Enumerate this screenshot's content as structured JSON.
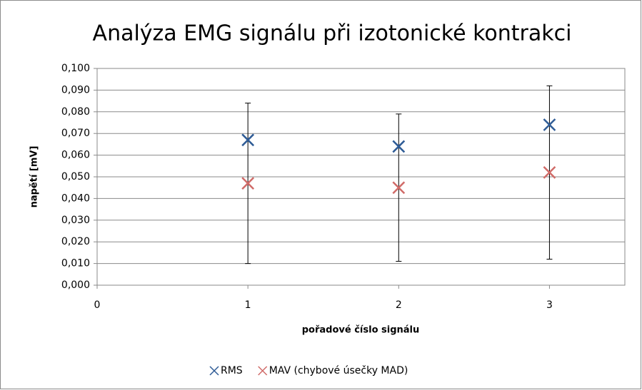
{
  "chart_data": {
    "type": "scatter",
    "title": "Analýza EMG signálu při izotonické kontrakci",
    "x_label": "pořadové číslo signálu",
    "y_label": "napětí [mV]",
    "x": [
      1,
      2,
      3
    ],
    "series": [
      {
        "name": "RMS",
        "color": "#2f5c96",
        "values": [
          0.067,
          0.064,
          0.074
        ]
      },
      {
        "name": "MAV (chybové úsečky MAD)",
        "color": "#d06b68",
        "values": [
          0.047,
          0.045,
          0.052
        ],
        "errors": [
          0.037,
          0.034,
          0.04
        ]
      }
    ],
    "xlim": [
      0,
      3.5
    ],
    "xticks": [
      0,
      1,
      2,
      3
    ],
    "ylim": [
      0,
      0.1
    ],
    "yticks": [
      {
        "value": 0,
        "label": "0,000"
      },
      {
        "value": 0.01,
        "label": "0,010"
      },
      {
        "value": 0.02,
        "label": "0,020"
      },
      {
        "value": 0.03,
        "label": "0,030"
      },
      {
        "value": 0.04,
        "label": "0,040"
      },
      {
        "value": 0.05,
        "label": "0,050"
      },
      {
        "value": 0.06,
        "label": "0,060"
      },
      {
        "value": 0.07,
        "label": "0,070"
      },
      {
        "value": 0.08,
        "label": "0,080"
      },
      {
        "value": 0.09,
        "label": "0,090"
      },
      {
        "value": 0.1,
        "label": "0,100"
      }
    ],
    "grid": true,
    "legend": "bottom"
  }
}
